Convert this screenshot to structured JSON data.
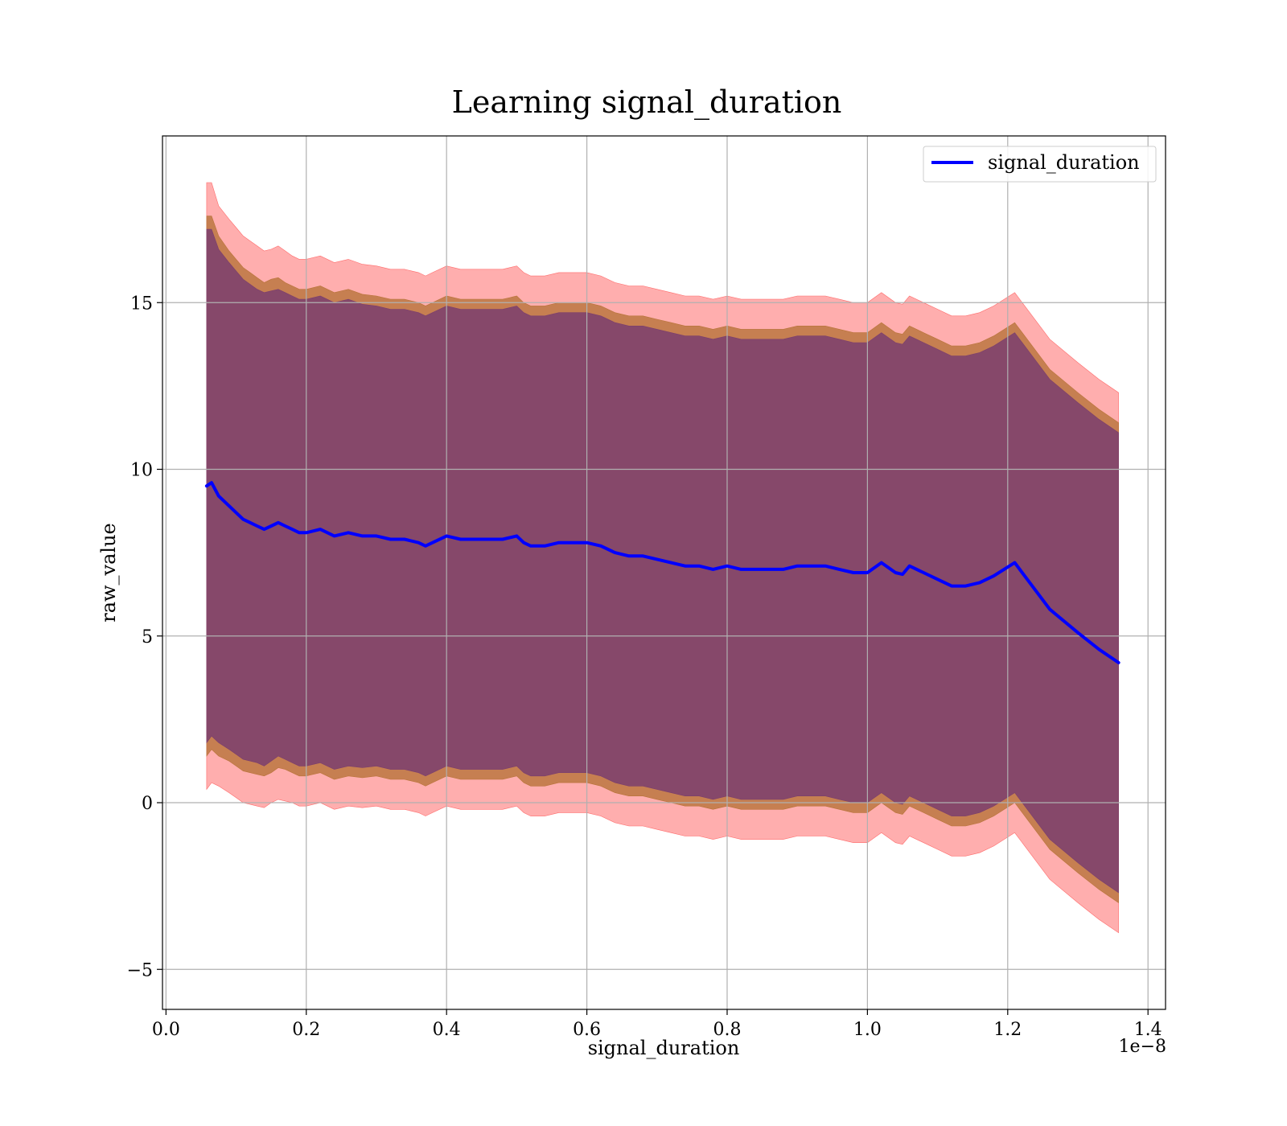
{
  "chart_data": {
    "type": "line",
    "title": "Learning signal_duration",
    "xlabel": "signal_duration",
    "ylabel": "raw_value",
    "x_offset_text": "1e−8",
    "xlim": [
      -0.005,
      1.425
    ],
    "ylim": [
      -6.2,
      20.0
    ],
    "x_ticks": [
      0.0,
      0.2,
      0.4,
      0.6,
      0.8,
      1.0,
      1.2,
      1.4
    ],
    "x_tick_labels": [
      "0.0",
      "0.2",
      "0.4",
      "0.6",
      "0.8",
      "1.0",
      "1.2",
      "1.4"
    ],
    "y_ticks": [
      -5,
      0,
      5,
      10,
      15
    ],
    "y_tick_labels": [
      "−5",
      "0",
      "5",
      "10",
      "15"
    ],
    "grid": true,
    "legend_position": "top-right",
    "colors": {
      "line": "#0000ff",
      "band_outer": "#ff6b6b",
      "band_middle": "#b8733a",
      "band_inner": "#7a3e6e",
      "grid": "#b0b0b0"
    },
    "series": [
      {
        "name": "signal_duration",
        "x": [
          0.058,
          0.065,
          0.075,
          0.09,
          0.1,
          0.11,
          0.12,
          0.13,
          0.14,
          0.15,
          0.16,
          0.17,
          0.18,
          0.19,
          0.2,
          0.22,
          0.24,
          0.26,
          0.28,
          0.3,
          0.32,
          0.34,
          0.36,
          0.37,
          0.38,
          0.4,
          0.42,
          0.44,
          0.46,
          0.48,
          0.5,
          0.51,
          0.52,
          0.54,
          0.56,
          0.58,
          0.6,
          0.62,
          0.64,
          0.66,
          0.68,
          0.7,
          0.72,
          0.74,
          0.76,
          0.78,
          0.8,
          0.82,
          0.84,
          0.86,
          0.88,
          0.9,
          0.92,
          0.94,
          0.96,
          0.98,
          1.0,
          1.02,
          1.04,
          1.05,
          1.06,
          1.08,
          1.1,
          1.12,
          1.14,
          1.16,
          1.18,
          1.21,
          1.26,
          1.3,
          1.33,
          1.358
        ],
        "values": [
          9.5,
          9.6,
          9.2,
          8.9,
          8.7,
          8.5,
          8.4,
          8.3,
          8.2,
          8.3,
          8.4,
          8.3,
          8.2,
          8.1,
          8.1,
          8.2,
          8.0,
          8.1,
          8.0,
          8.0,
          7.9,
          7.9,
          7.8,
          7.7,
          7.8,
          8.0,
          7.9,
          7.9,
          7.9,
          7.9,
          8.0,
          7.8,
          7.7,
          7.7,
          7.8,
          7.8,
          7.8,
          7.7,
          7.5,
          7.4,
          7.4,
          7.3,
          7.2,
          7.1,
          7.1,
          7.0,
          7.1,
          7.0,
          7.0,
          7.0,
          7.0,
          7.1,
          7.1,
          7.1,
          7.0,
          6.9,
          6.9,
          7.2,
          6.9,
          6.85,
          7.1,
          6.9,
          6.7,
          6.5,
          6.5,
          6.6,
          6.8,
          7.2,
          5.8,
          5.1,
          4.6,
          4.2
        ],
        "band_outer": [
          9.1,
          9.0,
          8.7,
          8.6,
          8.55,
          8.5,
          8.45,
          8.4,
          8.35,
          8.3,
          8.3,
          8.25,
          8.2,
          8.2,
          8.2,
          8.2,
          8.2,
          8.2,
          8.15,
          8.1,
          8.1,
          8.1,
          8.1,
          8.1,
          8.1,
          8.1,
          8.1,
          8.1,
          8.1,
          8.1,
          8.1,
          8.1,
          8.1,
          8.1,
          8.1,
          8.1,
          8.1,
          8.1,
          8.1,
          8.1,
          8.1,
          8.1,
          8.1,
          8.1,
          8.1,
          8.1,
          8.1,
          8.1,
          8.1,
          8.1,
          8.1,
          8.1,
          8.1,
          8.1,
          8.1,
          8.1,
          8.1,
          8.1,
          8.1,
          8.1,
          8.1,
          8.1,
          8.1,
          8.1,
          8.1,
          8.1,
          8.1,
          8.1,
          8.1,
          8.1,
          8.1,
          8.1
        ],
        "band_middle": [
          8.1,
          8.0,
          7.8,
          7.65,
          7.6,
          7.55,
          7.5,
          7.45,
          7.4,
          7.4,
          7.35,
          7.3,
          7.3,
          7.3,
          7.3,
          7.3,
          7.3,
          7.3,
          7.25,
          7.2,
          7.2,
          7.2,
          7.2,
          7.2,
          7.2,
          7.2,
          7.2,
          7.2,
          7.2,
          7.2,
          7.2,
          7.2,
          7.2,
          7.2,
          7.2,
          7.2,
          7.2,
          7.2,
          7.2,
          7.2,
          7.2,
          7.2,
          7.2,
          7.2,
          7.2,
          7.2,
          7.2,
          7.2,
          7.2,
          7.2,
          7.2,
          7.2,
          7.2,
          7.2,
          7.2,
          7.2,
          7.2,
          7.2,
          7.2,
          7.2,
          7.2,
          7.2,
          7.2,
          7.2,
          7.2,
          7.2,
          7.2,
          7.2,
          7.2,
          7.2,
          7.2,
          7.2
        ],
        "band_inner": [
          7.7,
          7.6,
          7.4,
          7.3,
          7.25,
          7.2,
          7.15,
          7.1,
          7.1,
          7.05,
          7.0,
          7.0,
          7.0,
          7.0,
          7.0,
          7.0,
          7.0,
          7.0,
          6.95,
          6.9,
          6.9,
          6.9,
          6.9,
          6.9,
          6.9,
          6.9,
          6.9,
          6.9,
          6.9,
          6.9,
          6.9,
          6.9,
          6.9,
          6.9,
          6.9,
          6.9,
          6.9,
          6.9,
          6.9,
          6.9,
          6.9,
          6.9,
          6.9,
          6.9,
          6.9,
          6.9,
          6.9,
          6.9,
          6.9,
          6.9,
          6.9,
          6.9,
          6.9,
          6.9,
          6.9,
          6.9,
          6.9,
          6.9,
          6.9,
          6.9,
          6.9,
          6.9,
          6.9,
          6.9,
          6.9,
          6.9,
          6.9,
          6.9,
          6.9,
          6.9,
          6.9,
          6.9
        ]
      }
    ]
  }
}
